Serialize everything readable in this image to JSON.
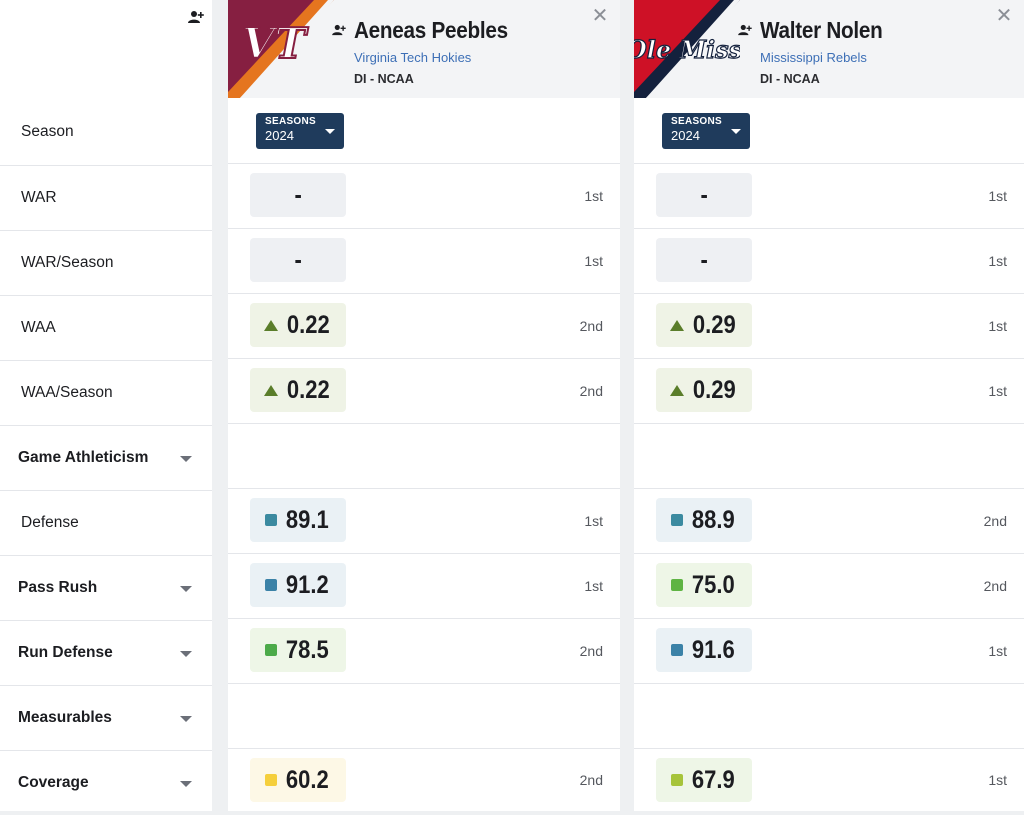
{
  "labels": {
    "rows": [
      {
        "label": "Season"
      },
      {
        "label": "WAR"
      },
      {
        "label": "WAR/Season"
      },
      {
        "label": "WAA"
      },
      {
        "label": "WAA/Season"
      },
      {
        "label": "Game Athleticism"
      },
      {
        "label": "Defense"
      },
      {
        "label": "Pass Rush"
      },
      {
        "label": "Run Defense"
      },
      {
        "label": "Measurables"
      },
      {
        "label": "Coverage"
      }
    ]
  },
  "players": [
    {
      "name": "Aeneas Peebles",
      "team": "Virginia Tech Hokies",
      "level": "DI - NCAA",
      "logo_text": "VT",
      "logo_colors": {
        "primary": "#861f41",
        "secondary": "#e5751f"
      },
      "seasons_caption": "SEASONS",
      "season": "2024",
      "close_icon": "close-icon",
      "stats": {
        "war": {
          "value": "-",
          "rank": "1st"
        },
        "war_season": {
          "value": "-",
          "rank": "1st"
        },
        "waa": {
          "value": "0.22",
          "rank": "2nd"
        },
        "waa_season": {
          "value": "0.22",
          "rank": "2nd"
        },
        "defense": {
          "value": "89.1",
          "rank": "1st",
          "color": "#3b8aa0"
        },
        "pass_rush": {
          "value": "91.2",
          "rank": "1st",
          "color": "#3b82a7"
        },
        "run_defense": {
          "value": "78.5",
          "rank": "2nd",
          "color": "#4caa4a"
        },
        "coverage": {
          "value": "60.2",
          "rank": "2nd",
          "color": "#f5cf3c"
        }
      }
    },
    {
      "name": "Walter Nolen",
      "team": "Mississippi Rebels",
      "level": "DI - NCAA",
      "logo_text": "Ole Miss",
      "logo_colors": {
        "primary": "#ce1126",
        "secondary": "#14213d"
      },
      "seasons_caption": "SEASONS",
      "season": "2024",
      "close_icon": "close-icon",
      "stats": {
        "war": {
          "value": "-",
          "rank": "1st"
        },
        "war_season": {
          "value": "-",
          "rank": "1st"
        },
        "waa": {
          "value": "0.29",
          "rank": "1st"
        },
        "waa_season": {
          "value": "0.29",
          "rank": "1st"
        },
        "defense": {
          "value": "88.9",
          "rank": "2nd",
          "color": "#3b8aa0"
        },
        "pass_rush": {
          "value": "75.0",
          "rank": "2nd",
          "color": "#5fb443"
        },
        "run_defense": {
          "value": "91.6",
          "rank": "1st",
          "color": "#3b82a7"
        },
        "coverage": {
          "value": "67.9",
          "rank": "1st",
          "color": "#a6c43a"
        }
      }
    }
  ],
  "colors": {
    "seasons_button": "#1f3b5c",
    "up_arrow": "#5a7d2a",
    "team_link": "#3d6fb6"
  }
}
